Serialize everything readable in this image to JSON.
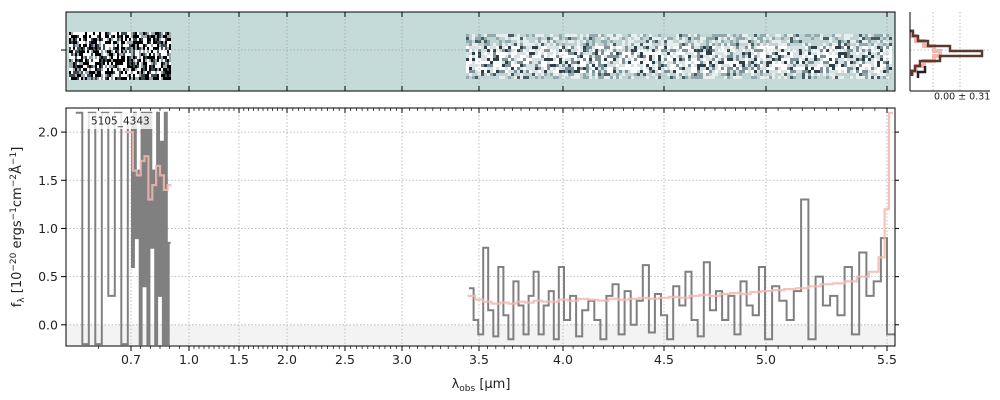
{
  "chart_data": {
    "type": "line",
    "object_id": "5105_4343",
    "xlabel_parts": {
      "base": "λ",
      "sub": "obs",
      "unit": " [μm]"
    },
    "ylabel_parts": {
      "f": "f",
      "sub": "λ",
      "rest1": " [10",
      "sup1": "−20",
      "rest2": " ergs",
      "sup2": "−1",
      "rest3": "cm",
      "sup3": "−2",
      "rest4": "Å",
      "sup4": "−1",
      "rest5": "]"
    },
    "x_tick_labels": [
      "0.7",
      "1.0",
      "1.5",
      "2.0",
      "2.5",
      "3.0",
      "3.5",
      "4.0",
      "4.5",
      "5.0",
      "5.5"
    ],
    "x_ticks": [
      0.7,
      1.0,
      1.5,
      2.0,
      2.5,
      3.0,
      3.5,
      4.0,
      4.5,
      5.0,
      5.5
    ],
    "xscale": "sqrt-like (non-linear wavelength axis)",
    "xlim": [
      0.6,
      5.52
    ],
    "y_tick_labels": [
      "0.0",
      "0.5",
      "1.0",
      "1.5",
      "2.0"
    ],
    "y_ticks": [
      0.0,
      0.5,
      1.0,
      1.5,
      2.0
    ],
    "ylim": [
      -0.22,
      2.25
    ],
    "grid": true,
    "colors": {
      "data": "#808080",
      "model": "#f4b7b0",
      "spec2d_bg": "#c5dbd9",
      "hist_data": "#5a3a2e",
      "hist_model": "#f4b7b0",
      "zero_band": "#f3f3f3"
    },
    "histogram_label": "0.00 ± 0.31",
    "series": [
      {
        "id": "data_prism_short",
        "x": [
          0.62,
          0.63,
          0.64,
          0.65,
          0.66,
          0.67,
          0.68,
          0.69,
          0.7,
          0.71,
          0.72,
          0.73,
          0.74,
          0.75,
          0.76,
          0.77,
          0.78,
          0.79,
          0.8,
          0.81,
          0.82,
          0.83,
          0.84,
          0.85,
          0.86,
          0.87,
          0.88,
          0.89,
          0.9
        ],
        "y": [
          2.2,
          -0.2,
          2.2,
          -0.2,
          2.2,
          0.3,
          2.2,
          -0.2,
          2.1,
          0.6,
          2.2,
          0.9,
          1.6,
          -0.2,
          2.2,
          0.4,
          2.2,
          -0.2,
          2.2,
          0.8,
          1.6,
          -0.2,
          2.2,
          0.3,
          1.9,
          -0.2,
          2.2,
          -0.2,
          0.85
        ]
      },
      {
        "id": "data_prism_long",
        "x": [
          3.45,
          3.48,
          3.51,
          3.54,
          3.57,
          3.6,
          3.63,
          3.66,
          3.69,
          3.72,
          3.75,
          3.78,
          3.81,
          3.84,
          3.87,
          3.9,
          3.93,
          3.96,
          3.99,
          4.02,
          4.05,
          4.08,
          4.11,
          4.14,
          4.17,
          4.2,
          4.23,
          4.26,
          4.29,
          4.32,
          4.35,
          4.38,
          4.41,
          4.44,
          4.47,
          4.5,
          4.53,
          4.56,
          4.59,
          4.62,
          4.65,
          4.68,
          4.71,
          4.74,
          4.77,
          4.8,
          4.83,
          4.86,
          4.89,
          4.92,
          4.95,
          4.98,
          5.01,
          5.04,
          5.07,
          5.1,
          5.13,
          5.16,
          5.19,
          5.22,
          5.25,
          5.28,
          5.31,
          5.34,
          5.37,
          5.4,
          5.43,
          5.46,
          5.49,
          5.51
        ],
        "y": [
          0.38,
          0.05,
          -0.1,
          0.8,
          0.15,
          -0.12,
          0.6,
          0.1,
          -0.15,
          0.45,
          0.2,
          -0.1,
          0.3,
          0.55,
          -0.1,
          0.2,
          0.35,
          -0.15,
          0.6,
          0.05,
          0.3,
          -0.12,
          0.15,
          0.25,
          0.05,
          -0.15,
          0.3,
          0.42,
          -0.1,
          0.35,
          0.0,
          0.25,
          0.62,
          -0.08,
          0.32,
          0.1,
          -0.15,
          0.4,
          0.2,
          0.55,
          0.05,
          -0.12,
          0.65,
          0.15,
          0.35,
          0.05,
          0.3,
          -0.1,
          0.45,
          0.2,
          0.1,
          0.6,
          -0.15,
          0.4,
          0.25,
          0.05,
          0.35,
          1.3,
          -0.15,
          0.5,
          0.2,
          0.3,
          0.1,
          0.6,
          -0.1,
          0.75,
          0.3,
          0.45,
          0.9,
          -0.1
        ]
      },
      {
        "id": "model_short",
        "x": [
          0.7,
          0.72,
          0.74,
          0.76,
          0.78,
          0.8,
          0.82,
          0.84,
          0.86,
          0.88,
          0.9
        ],
        "y": [
          2.0,
          1.6,
          1.55,
          1.7,
          1.75,
          1.3,
          1.45,
          1.65,
          1.55,
          1.4,
          1.45
        ]
      },
      {
        "id": "model_long",
        "x": [
          3.45,
          3.5,
          3.55,
          3.6,
          3.65,
          3.7,
          3.75,
          3.8,
          3.85,
          3.9,
          3.95,
          4.0,
          4.05,
          4.1,
          4.15,
          4.2,
          4.25,
          4.3,
          4.35,
          4.4,
          4.45,
          4.5,
          4.55,
          4.6,
          4.65,
          4.7,
          4.75,
          4.8,
          4.85,
          4.9,
          4.95,
          5.0,
          5.05,
          5.1,
          5.15,
          5.2,
          5.25,
          5.3,
          5.35,
          5.4,
          5.45,
          5.48,
          5.5,
          5.51
        ],
        "y": [
          0.3,
          0.26,
          0.24,
          0.22,
          0.23,
          0.22,
          0.24,
          0.23,
          0.25,
          0.24,
          0.24,
          0.26,
          0.25,
          0.27,
          0.26,
          0.25,
          0.27,
          0.26,
          0.27,
          0.28,
          0.27,
          0.28,
          0.29,
          0.28,
          0.3,
          0.31,
          0.3,
          0.32,
          0.33,
          0.32,
          0.34,
          0.35,
          0.36,
          0.37,
          0.38,
          0.4,
          0.42,
          0.43,
          0.45,
          0.5,
          0.55,
          0.7,
          1.2,
          2.2
        ]
      }
    ]
  }
}
